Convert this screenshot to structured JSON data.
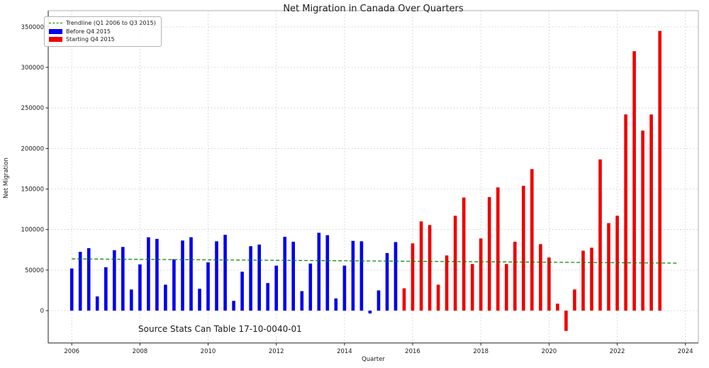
{
  "title": "Net Migration in Canada Over Quarters",
  "axes": {
    "xlabel": "Quarter",
    "ylabel": "Net Migration"
  },
  "source_note": "Source Stats Can Table 17-10-0040-01",
  "legend": {
    "trendline_label": "Trendline (Q1 2006 to Q3 2015)",
    "before_label": "Before Q4 2015",
    "starting_label": "Starting Q4 2015"
  },
  "colors": {
    "before": "#0000ee",
    "starting": "#ee0000",
    "trendline": "#008000",
    "grid": "#d2d2d2",
    "text": "#1a1a1a"
  },
  "chart_data": {
    "type": "bar",
    "title": "Net Migration in Canada Over Quarters",
    "xlabel": "Quarter",
    "ylabel": "Net Migration",
    "x_ticks": [
      2006,
      2008,
      2010,
      2012,
      2014,
      2016,
      2018,
      2020,
      2022,
      2024
    ],
    "y_ticks": [
      0,
      50000,
      100000,
      150000,
      200000,
      250000,
      300000,
      350000
    ],
    "xlim": [
      2005.31,
      2024.38
    ],
    "ylim": [
      -40000,
      370000
    ],
    "grid": true,
    "legend_position": "upper left",
    "quarter_step": 0.25,
    "start_year": 2006,
    "series": [
      {
        "name": "Before Q4 2015",
        "key": "before-q4-2015",
        "color": "#0000ee",
        "quarters": [
          "2006 Q1",
          "2006 Q2",
          "2006 Q3",
          "2006 Q4",
          "2007 Q1",
          "2007 Q2",
          "2007 Q3",
          "2007 Q4",
          "2008 Q1",
          "2008 Q2",
          "2008 Q3",
          "2008 Q4",
          "2009 Q1",
          "2009 Q2",
          "2009 Q3",
          "2009 Q4",
          "2010 Q1",
          "2010 Q2",
          "2010 Q3",
          "2010 Q4",
          "2011 Q1",
          "2011 Q2",
          "2011 Q3",
          "2011 Q4",
          "2012 Q1",
          "2012 Q2",
          "2012 Q3",
          "2012 Q4",
          "2013 Q1",
          "2013 Q2",
          "2013 Q3",
          "2013 Q4",
          "2014 Q1",
          "2014 Q2",
          "2014 Q3",
          "2014 Q4",
          "2015 Q1",
          "2015 Q2",
          "2015 Q3"
        ],
        "values": [
          52000,
          72500,
          77000,
          17500,
          53500,
          74500,
          78500,
          26000,
          57000,
          90500,
          88500,
          32000,
          63500,
          86500,
          90500,
          27000,
          59500,
          85500,
          93500,
          12000,
          48000,
          79500,
          81500,
          34000,
          55500,
          91000,
          85000,
          24000,
          58000,
          96000,
          93000,
          15000,
          55500,
          86000,
          85500,
          -3500,
          25000,
          71000,
          84500
        ]
      },
      {
        "name": "Starting Q4 2015",
        "key": "starting-q4-2015",
        "color": "#ee0000",
        "quarters": [
          "2015 Q4",
          "2016 Q1",
          "2016 Q2",
          "2016 Q3",
          "2016 Q4",
          "2017 Q1",
          "2017 Q2",
          "2017 Q3",
          "2017 Q4",
          "2018 Q1",
          "2018 Q2",
          "2018 Q3",
          "2018 Q4",
          "2019 Q1",
          "2019 Q2",
          "2019 Q3",
          "2019 Q4",
          "2020 Q1",
          "2020 Q2",
          "2020 Q3",
          "2020 Q4",
          "2021 Q1",
          "2021 Q2",
          "2021 Q3",
          "2021 Q4",
          "2022 Q1",
          "2022 Q2",
          "2022 Q3",
          "2022 Q4",
          "2023 Q1",
          "2023 Q2"
        ],
        "values": [
          27500,
          83000,
          110000,
          105500,
          32000,
          68000,
          117000,
          139500,
          57500,
          89000,
          140000,
          152000,
          57500,
          85000,
          154000,
          174500,
          82000,
          65500,
          8500,
          -25000,
          26000,
          74000,
          77500,
          186500,
          108000,
          117000,
          242000,
          320000,
          222000,
          242000,
          345000
        ]
      }
    ],
    "trendline": {
      "name": "Trendline (Q1 2006 to Q3 2015)",
      "color": "#008000",
      "style": "dashed",
      "x_start": 2006.0,
      "y_start": 63800,
      "x_end": 2023.75,
      "y_end": 58600
    }
  }
}
